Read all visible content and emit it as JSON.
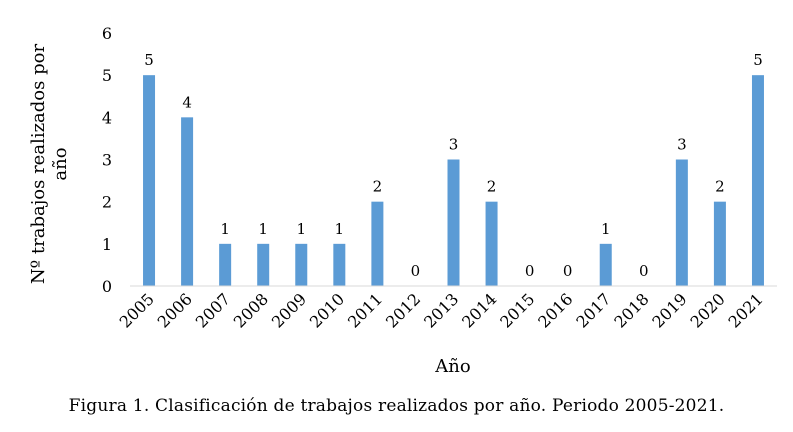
{
  "chart_data": {
    "type": "bar",
    "title": "",
    "categories": [
      "2005",
      "2006",
      "2007",
      "2008",
      "2009",
      "2010",
      "2011",
      "2012",
      "2013",
      "2014",
      "2015",
      "2016",
      "2017",
      "2018",
      "2019",
      "2020",
      "2021"
    ],
    "values": [
      5,
      4,
      1,
      1,
      1,
      1,
      2,
      0,
      3,
      2,
      0,
      0,
      1,
      0,
      3,
      2,
      5
    ],
    "xlabel": "Año",
    "ylabel_line1": "Nº trabajos realizados por",
    "ylabel_line2": "año",
    "ylim": [
      0,
      6
    ],
    "yticks": [
      "0",
      "1",
      "2",
      "3",
      "4",
      "5",
      "6"
    ],
    "bar_color": "#5b9bd5",
    "grid": false,
    "data_labels": true
  },
  "caption": "Figura 1. Clasificación de trabajos realizados por año. Periodo 2005-2021."
}
